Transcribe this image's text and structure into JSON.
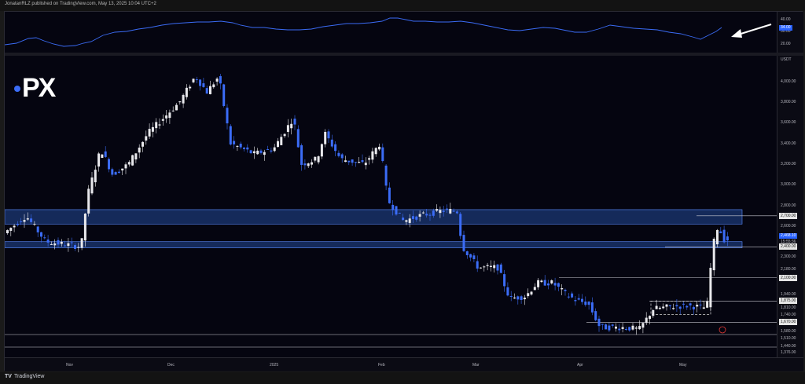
{
  "header": {
    "attribution": "JonatanRLZ published on TradingView.com, May 13, 2025 10:04 UTC+2"
  },
  "footer": {
    "logo_label": "TradingView"
  },
  "brand": {
    "logo_text": "PX",
    "accent": "#3b6cf6"
  },
  "oscillator": {
    "ticks": [
      "40.00",
      "30.00",
      "20.00"
    ],
    "current_value": "34.00",
    "line_color": "#3b6cf6",
    "annotation": "arrow-pointing-to-oscillator-rise"
  },
  "price_axis": {
    "currency": "USDT",
    "ticks": [
      "4,000.00",
      "3,800.00",
      "3,600.00",
      "3,400.00",
      "3,200.00",
      "3,000.00",
      "2,800.00",
      "2,600.00",
      "2,300.00",
      "2,180.00",
      "1,940.00",
      "1,810.00",
      "1,740.00",
      "1,580.00",
      "1,510.00",
      "1,440.00",
      "1,376.00"
    ],
    "level_tags": [
      {
        "label": "2,700.00",
        "price": 2700
      },
      {
        "label": "2,400.00",
        "price": 2400
      },
      {
        "label": "2,100.00",
        "price": 2100
      },
      {
        "label": "1,875.00",
        "price": 1875
      },
      {
        "label": "1,670.00",
        "price": 1670
      }
    ],
    "current_price": "2,468.10",
    "countdown": "15:55:36"
  },
  "time_axis": {
    "labels": [
      "Nov",
      "Dec",
      "2025",
      "Feb",
      "Mar",
      "Apr",
      "May"
    ]
  },
  "zones": [
    {
      "name": "resistance-zone",
      "from": 2620,
      "to": 2760
    },
    {
      "name": "support-zone",
      "from": 2390,
      "to": 2450
    }
  ],
  "colors": {
    "bull": "#e8e8ec",
    "bear": "#3b6cf6",
    "zone_fill": "#1c3a7a",
    "zone_border": "#5b8cff",
    "level_line": "#c8c8d0"
  }
}
